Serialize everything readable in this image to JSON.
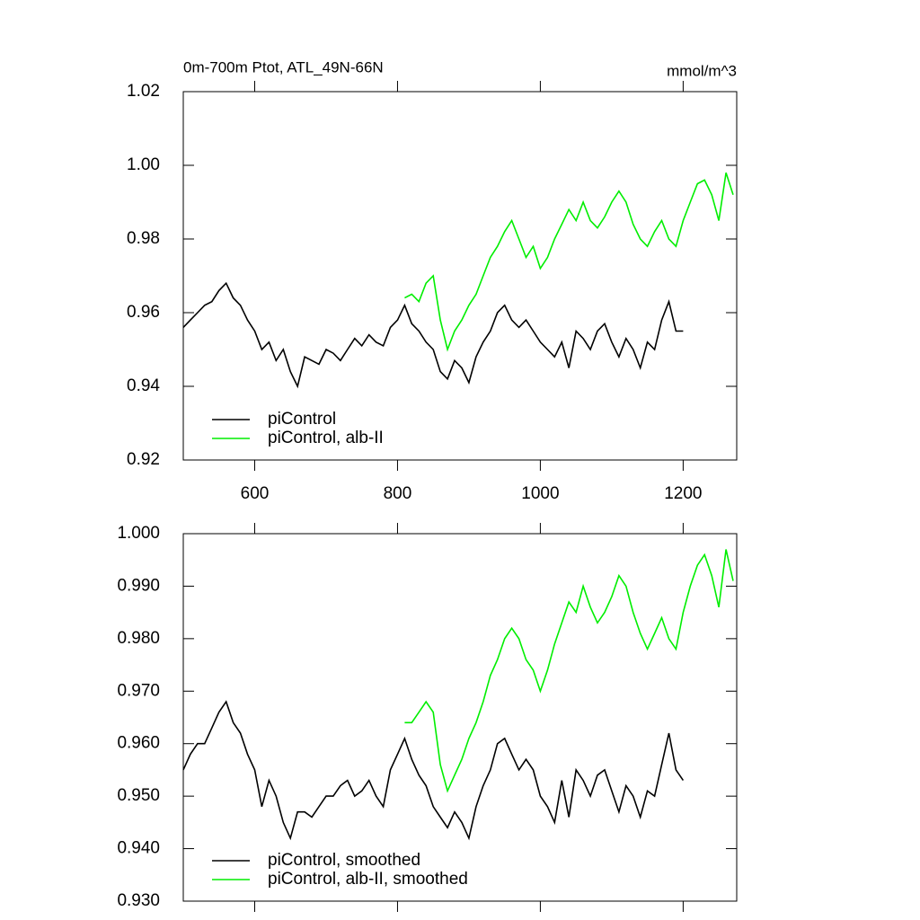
{
  "chart_data": [
    {
      "type": "line",
      "title": "0m-700m Ptot, ATL_49N-66N",
      "units": "mmol/m^3",
      "x": [
        500,
        510,
        520,
        530,
        540,
        550,
        560,
        570,
        580,
        590,
        600,
        610,
        620,
        630,
        640,
        650,
        660,
        670,
        680,
        690,
        700,
        710,
        720,
        730,
        740,
        750,
        760,
        770,
        780,
        790,
        800,
        810,
        820,
        830,
        840,
        850,
        860,
        870,
        880,
        890,
        900,
        910,
        920,
        930,
        940,
        950,
        960,
        970,
        980,
        990,
        1000,
        1010,
        1020,
        1030,
        1040,
        1050,
        1060,
        1070,
        1080,
        1090,
        1100,
        1110,
        1120,
        1130,
        1140,
        1150,
        1160,
        1170,
        1180,
        1190,
        1200,
        1210,
        1220,
        1230,
        1240,
        1250,
        1260,
        1270
      ],
      "xlim": [
        500,
        1275
      ],
      "xticks": [
        600,
        800,
        1000,
        1200
      ],
      "ylim": [
        0.92,
        1.02
      ],
      "yticks": [
        0.92,
        0.94,
        0.96,
        0.98,
        {
          "value": 1,
          "label": "1.00"
        },
        1.02
      ],
      "legend": "lower left",
      "series": [
        {
          "name": "piControl",
          "color": "#000000",
          "values": [
            0.956,
            0.958,
            0.96,
            0.962,
            0.963,
            0.966,
            0.968,
            0.964,
            0.962,
            0.958,
            0.955,
            0.95,
            0.952,
            0.947,
            0.95,
            0.944,
            0.94,
            0.948,
            0.947,
            0.946,
            0.95,
            0.949,
            0.947,
            0.95,
            0.953,
            0.951,
            0.954,
            0.952,
            0.951,
            0.956,
            0.958,
            0.962,
            0.957,
            0.955,
            0.952,
            0.95,
            0.944,
            0.942,
            0.947,
            0.945,
            0.941,
            0.948,
            0.952,
            0.955,
            0.96,
            0.962,
            0.958,
            0.956,
            0.958,
            0.955,
            0.952,
            0.95,
            0.948,
            0.952,
            0.945,
            0.955,
            0.953,
            0.95,
            0.955,
            0.957,
            0.952,
            0.948,
            0.953,
            0.95,
            0.945,
            0.952,
            0.95,
            0.958,
            0.963,
            0.955,
            0.955,
            null,
            null,
            null,
            null,
            null,
            null,
            null
          ]
        },
        {
          "name": "piControl, alb-II",
          "color": "#00ee00",
          "values": [
            null,
            null,
            null,
            null,
            null,
            null,
            null,
            null,
            null,
            null,
            null,
            null,
            null,
            null,
            null,
            null,
            null,
            null,
            null,
            null,
            null,
            null,
            null,
            null,
            null,
            null,
            null,
            null,
            null,
            null,
            null,
            0.964,
            0.965,
            0.963,
            0.968,
            0.97,
            0.958,
            0.95,
            0.955,
            0.958,
            0.962,
            0.965,
            0.97,
            0.975,
            0.978,
            0.982,
            0.985,
            0.98,
            0.975,
            0.978,
            0.972,
            0.975,
            0.98,
            0.984,
            0.988,
            0.985,
            0.99,
            0.985,
            0.983,
            0.986,
            0.99,
            0.993,
            0.99,
            0.984,
            0.98,
            0.978,
            0.982,
            0.985,
            0.98,
            0.978,
            0.985,
            0.99,
            0.995,
            0.996,
            0.992,
            0.985,
            0.998,
            0.992
          ]
        }
      ]
    },
    {
      "type": "line",
      "x": [
        500,
        510,
        520,
        530,
        540,
        550,
        560,
        570,
        580,
        590,
        600,
        610,
        620,
        630,
        640,
        650,
        660,
        670,
        680,
        690,
        700,
        710,
        720,
        730,
        740,
        750,
        760,
        770,
        780,
        790,
        800,
        810,
        820,
        830,
        840,
        850,
        860,
        870,
        880,
        890,
        900,
        910,
        920,
        930,
        940,
        950,
        960,
        970,
        980,
        990,
        1000,
        1010,
        1020,
        1030,
        1040,
        1050,
        1060,
        1070,
        1080,
        1090,
        1100,
        1110,
        1120,
        1130,
        1140,
        1150,
        1160,
        1170,
        1180,
        1190,
        1200,
        1210,
        1220,
        1230,
        1240,
        1250,
        1260,
        1270
      ],
      "xlim": [
        500,
        1275
      ],
      "ylim": [
        0.93,
        1.0
      ],
      "yticks": [
        {
          "value": 0.93,
          "label": "0.930"
        },
        {
          "value": 0.94,
          "label": "0.940"
        },
        {
          "value": 0.95,
          "label": "0.950"
        },
        {
          "value": 0.96,
          "label": "0.960"
        },
        {
          "value": 0.97,
          "label": "0.970"
        },
        {
          "value": 0.98,
          "label": "0.980"
        },
        {
          "value": 0.99,
          "label": "0.990"
        },
        {
          "value": 1,
          "label": "1.000"
        }
      ],
      "legend": "lower left",
      "series": [
        {
          "name": "piControl, smoothed",
          "color": "#000000",
          "values": [
            0.955,
            0.958,
            0.96,
            0.96,
            0.963,
            0.966,
            0.968,
            0.964,
            0.962,
            0.958,
            0.955,
            0.948,
            0.953,
            0.95,
            0.945,
            0.942,
            0.947,
            0.947,
            0.946,
            0.948,
            0.95,
            0.95,
            0.952,
            0.953,
            0.95,
            0.951,
            0.953,
            0.95,
            0.948,
            0.955,
            0.958,
            0.961,
            0.957,
            0.954,
            0.952,
            0.948,
            0.946,
            0.944,
            0.947,
            0.945,
            0.942,
            0.948,
            0.952,
            0.955,
            0.96,
            0.961,
            0.958,
            0.955,
            0.957,
            0.955,
            0.95,
            0.948,
            0.945,
            0.953,
            0.946,
            0.955,
            0.953,
            0.95,
            0.954,
            0.955,
            0.951,
            0.947,
            0.952,
            0.95,
            0.946,
            0.951,
            0.95,
            0.956,
            0.962,
            0.955,
            0.953,
            null,
            null,
            null,
            null,
            null,
            null,
            null
          ]
        },
        {
          "name": "piControl, alb-II, smoothed",
          "color": "#00ee00",
          "values": [
            null,
            null,
            null,
            null,
            null,
            null,
            null,
            null,
            null,
            null,
            null,
            null,
            null,
            null,
            null,
            null,
            null,
            null,
            null,
            null,
            null,
            null,
            null,
            null,
            null,
            null,
            null,
            null,
            null,
            null,
            null,
            0.964,
            0.964,
            0.966,
            0.968,
            0.966,
            0.956,
            0.951,
            0.954,
            0.957,
            0.961,
            0.964,
            0.968,
            0.973,
            0.976,
            0.98,
            0.982,
            0.98,
            0.976,
            0.974,
            0.97,
            0.974,
            0.979,
            0.983,
            0.987,
            0.985,
            0.99,
            0.986,
            0.983,
            0.985,
            0.988,
            0.992,
            0.99,
            0.985,
            0.981,
            0.978,
            0.981,
            0.984,
            0.98,
            0.978,
            0.985,
            0.99,
            0.994,
            0.996,
            0.992,
            0.986,
            0.997,
            0.991
          ]
        }
      ]
    }
  ]
}
